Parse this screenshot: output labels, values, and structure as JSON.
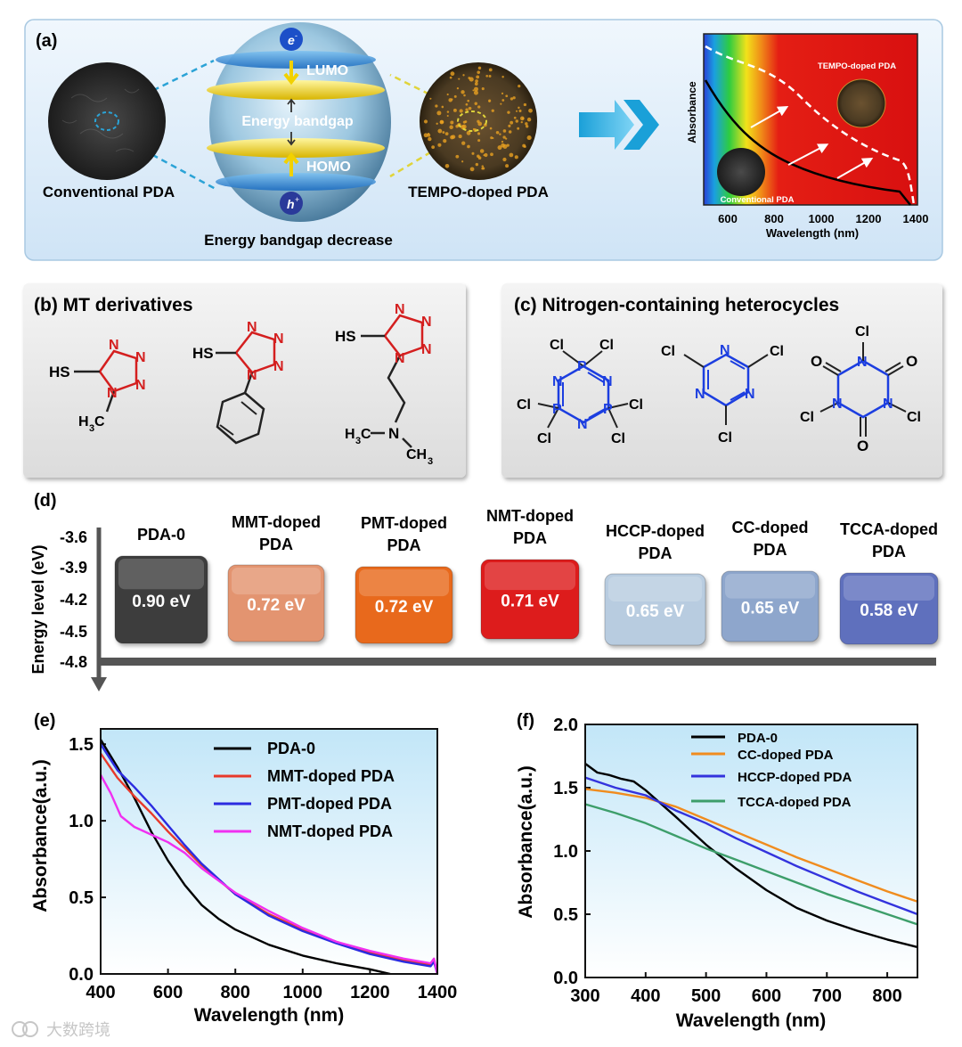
{
  "panel_a": {
    "label": "(a)",
    "conventional": "Conventional PDA",
    "tempo": "TEMPO-doped PDA",
    "lumo": "LUMO",
    "homo": "HOMO",
    "gap": "Energy bandgap",
    "electron": "e",
    "electron_sup": "-",
    "hole": "h",
    "hole_sup": "+",
    "decrease": "Energy bandgap decrease",
    "inset": {
      "ylabel": "Absorbance",
      "xlabel": "Wavelength (nm)",
      "xticks": [
        "600",
        "800",
        "1000",
        "1200",
        "1400"
      ],
      "tempo": "TEMPO-doped PDA",
      "conventional": "Conventional PDA"
    }
  },
  "panel_b": {
    "title": "(b) MT derivatives",
    "sh": "HS",
    "n": "N",
    "h3c": "H",
    "sub3": "3",
    "c": "C",
    "ch": "CH"
  },
  "panel_c": {
    "title": "(c) Nitrogen-containing heterocycles",
    "cl": "Cl",
    "n": "N",
    "p": "P",
    "o": "O"
  },
  "panel_d": {
    "label": "(d)",
    "ylabel": "Energy level (eV)",
    "yticks": [
      "-3.6",
      "-3.9",
      "-4.2",
      "-4.5",
      "-4.8"
    ],
    "boxes": [
      {
        "name_l1": "PDA-0",
        "name_l2": "",
        "value": "0.90 eV",
        "color": "#3d3d3d"
      },
      {
        "name_l1": "MMT-doped",
        "name_l2": "PDA",
        "value": "0.72 eV",
        "color": "#e39470"
      },
      {
        "name_l1": "PMT-doped",
        "name_l2": "PDA",
        "value": "0.72 eV",
        "color": "#e8691d"
      },
      {
        "name_l1": "NMT-doped",
        "name_l2": "PDA",
        "value": "0.71 eV",
        "color": "#dd1c1c"
      },
      {
        "name_l1": "HCCP-doped",
        "name_l2": "PDA",
        "value": "0.65 eV",
        "color": "#b8cce0"
      },
      {
        "name_l1": "CC-doped",
        "name_l2": "PDA",
        "value": "0.65 eV",
        "color": "#8ea6cc"
      },
      {
        "name_l1": "TCCA-doped",
        "name_l2": "PDA",
        "value": "0.58 eV",
        "color": "#5e6fbd"
      }
    ]
  },
  "chart_data": [
    {
      "panel": "(e)",
      "type": "line",
      "xlabel": "Wavelength (nm)",
      "ylabel": "Absorbance(a.u.)",
      "xlim": [
        400,
        1400
      ],
      "ylim": [
        0,
        1.6
      ],
      "xticks": [
        400,
        600,
        800,
        1000,
        1200,
        1400
      ],
      "yticks": [
        0.0,
        0.5,
        1.0,
        1.5
      ],
      "ytick_labels": [
        "0.0",
        "0.5",
        "1.0",
        "1.5"
      ],
      "series": [
        {
          "name": "PDA-0",
          "color": "#000000",
          "x": [
            400,
            450,
            500,
            550,
            600,
            650,
            700,
            750,
            800,
            900,
            1000,
            1100,
            1200,
            1260
          ],
          "y": [
            1.53,
            1.35,
            1.15,
            0.93,
            0.74,
            0.58,
            0.45,
            0.36,
            0.29,
            0.19,
            0.12,
            0.07,
            0.03,
            0.0
          ]
        },
        {
          "name": "MMT-doped PDA",
          "color": "#e8392b",
          "x": [
            400,
            450,
            500,
            550,
            600,
            650,
            700,
            800,
            900,
            1000,
            1100,
            1200,
            1300,
            1380,
            1390,
            1400
          ],
          "y": [
            1.44,
            1.28,
            1.16,
            1.05,
            0.93,
            0.82,
            0.71,
            0.52,
            0.39,
            0.29,
            0.21,
            0.14,
            0.09,
            0.06,
            0.09,
            0.0
          ]
        },
        {
          "name": "PMT-doped PDA",
          "color": "#2b2be0",
          "x": [
            400,
            450,
            500,
            550,
            600,
            650,
            700,
            800,
            900,
            1000,
            1100,
            1200,
            1300,
            1380,
            1390,
            1400
          ],
          "y": [
            1.5,
            1.33,
            1.22,
            1.1,
            0.97,
            0.84,
            0.72,
            0.52,
            0.38,
            0.28,
            0.2,
            0.13,
            0.08,
            0.05,
            0.08,
            0.0
          ]
        },
        {
          "name": "NMT-doped PDA",
          "color": "#f030f0",
          "x": [
            400,
            430,
            460,
            500,
            550,
            600,
            650,
            700,
            800,
            900,
            1000,
            1100,
            1200,
            1300,
            1380,
            1390,
            1400
          ],
          "y": [
            1.3,
            1.18,
            1.03,
            0.96,
            0.91,
            0.86,
            0.79,
            0.69,
            0.53,
            0.41,
            0.3,
            0.21,
            0.15,
            0.1,
            0.07,
            0.1,
            0.0
          ]
        }
      ]
    },
    {
      "panel": "(f)",
      "type": "line",
      "xlabel": "Wavelength (nm)",
      "ylabel": "Absorbance(a.u.)",
      "xlim": [
        300,
        850
      ],
      "ylim": [
        0,
        2.0
      ],
      "xticks": [
        300,
        400,
        500,
        600,
        700,
        800
      ],
      "yticks": [
        0.0,
        0.5,
        1.0,
        1.5,
        2.0
      ],
      "ytick_labels": [
        "0.0",
        "0.5",
        "1.0",
        "1.5",
        "2.0"
      ],
      "series": [
        {
          "name": "PDA-0",
          "color": "#000000",
          "x": [
            300,
            320,
            340,
            360,
            380,
            400,
            450,
            500,
            550,
            600,
            650,
            700,
            750,
            800,
            850
          ],
          "y": [
            1.69,
            1.62,
            1.6,
            1.57,
            1.55,
            1.48,
            1.27,
            1.05,
            0.86,
            0.69,
            0.55,
            0.45,
            0.37,
            0.3,
            0.24
          ]
        },
        {
          "name": "CC-doped PDA",
          "color": "#f08c1e",
          "x": [
            300,
            350,
            400,
            450,
            500,
            550,
            600,
            650,
            700,
            750,
            800,
            850
          ],
          "y": [
            1.49,
            1.46,
            1.42,
            1.35,
            1.25,
            1.15,
            1.05,
            0.95,
            0.86,
            0.77,
            0.68,
            0.6
          ]
        },
        {
          "name": "HCCP-doped PDA",
          "color": "#3333dd",
          "x": [
            300,
            350,
            400,
            450,
            500,
            550,
            600,
            650,
            700,
            750,
            800,
            850
          ],
          "y": [
            1.58,
            1.5,
            1.44,
            1.32,
            1.22,
            1.1,
            0.99,
            0.88,
            0.78,
            0.68,
            0.59,
            0.5
          ]
        },
        {
          "name": "TCCA-doped PDA",
          "color": "#3d9e6a",
          "x": [
            300,
            350,
            400,
            450,
            500,
            550,
            600,
            650,
            700,
            750,
            800,
            850
          ],
          "y": [
            1.37,
            1.3,
            1.22,
            1.12,
            1.02,
            0.93,
            0.84,
            0.75,
            0.66,
            0.58,
            0.5,
            0.42
          ]
        }
      ]
    }
  ],
  "watermark": "大数跨境"
}
